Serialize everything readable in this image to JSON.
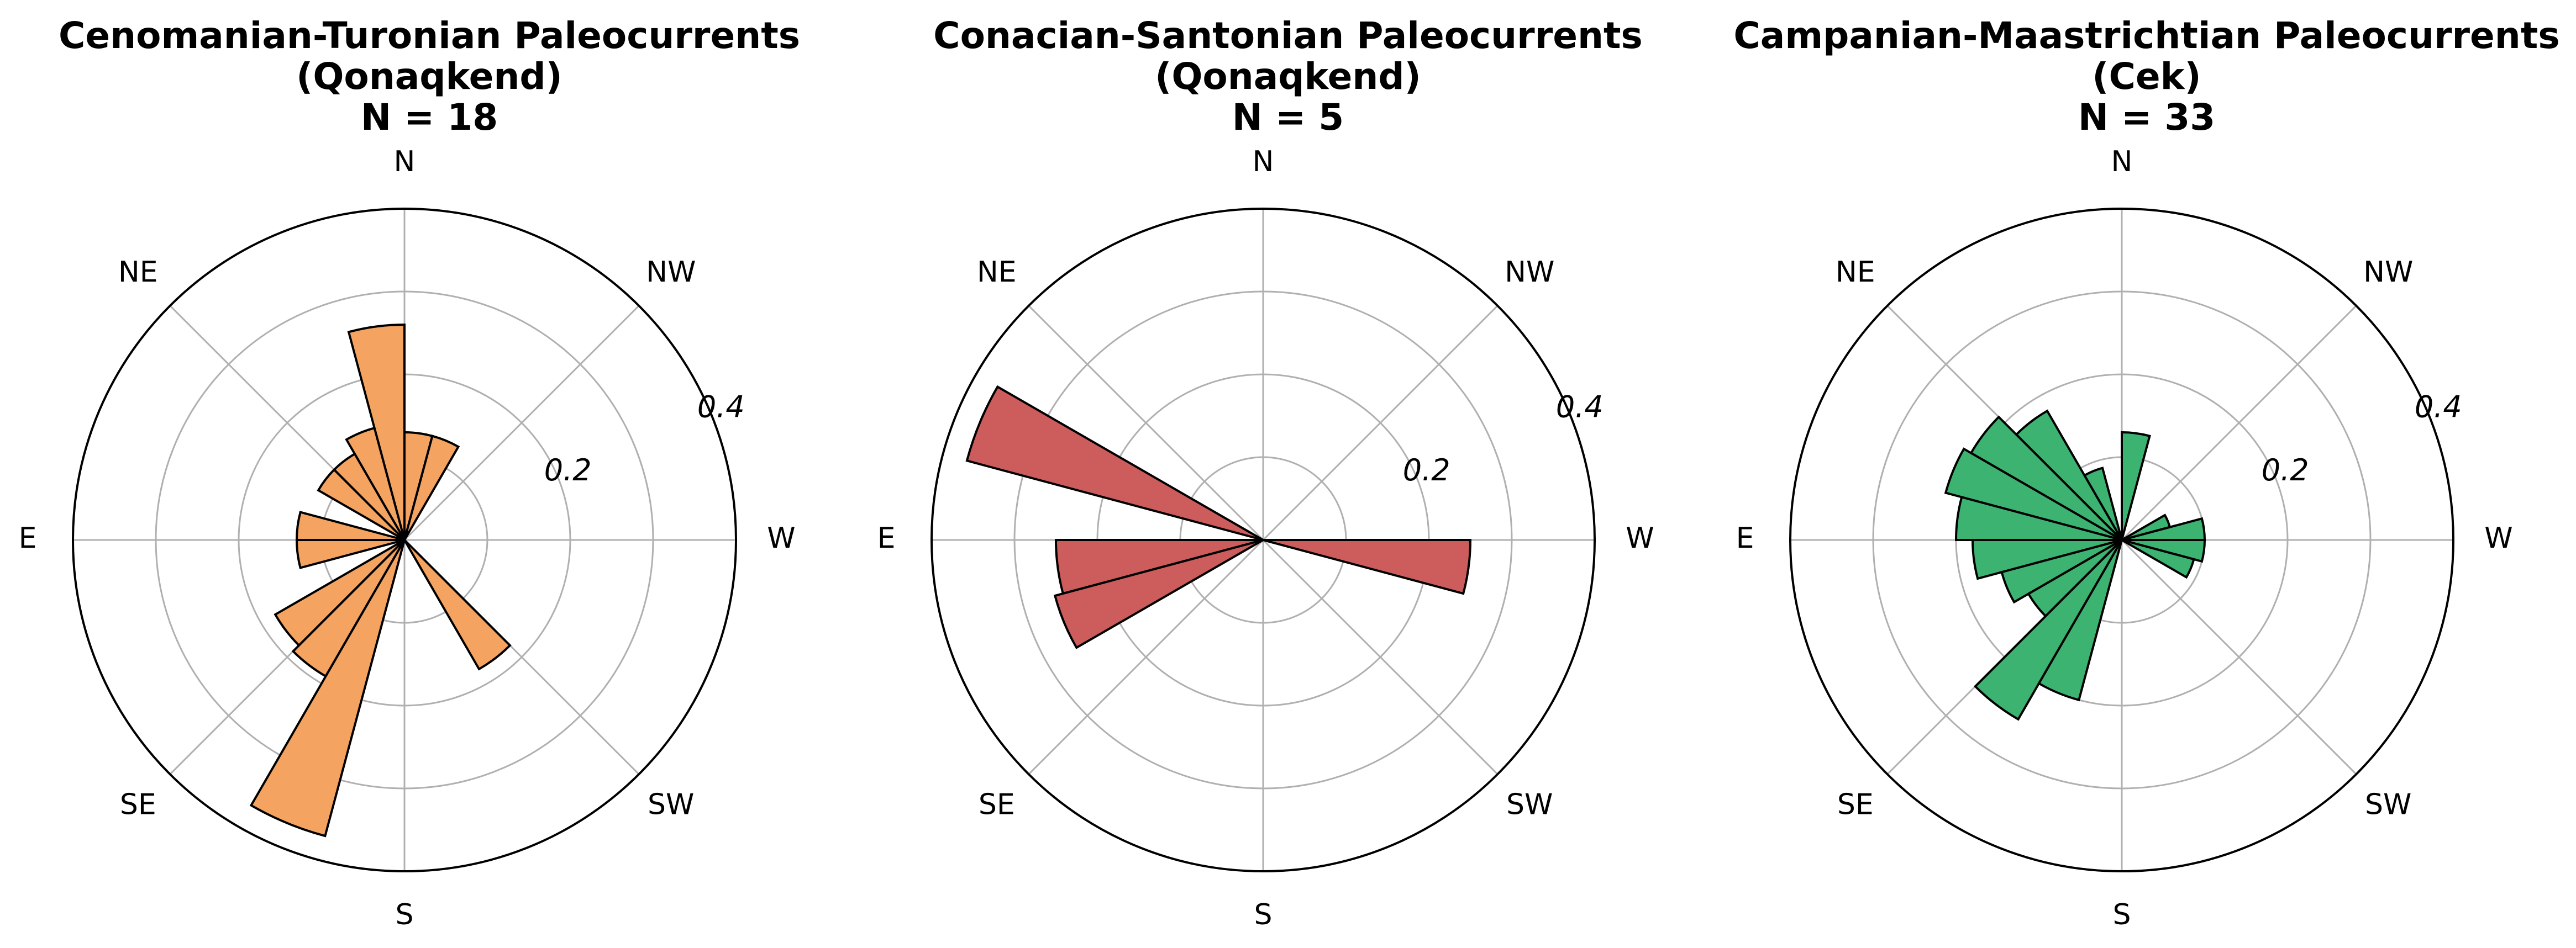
{
  "figure": {
    "panels": [
      {
        "title_line1": "Cenomanian-Turonian Paleocurrents",
        "title_line2": "(Qonaqkend)",
        "title_line3": "N = 18"
      },
      {
        "title_line1": "Conacian-Santonian Paleocurrents",
        "title_line2": "(Qonaqkend)",
        "title_line3": "N = 5"
      },
      {
        "title_line1": "Campanian-Maastrichtian Paleocurrents",
        "title_line2": "(Cek)",
        "title_line3": "N = 33"
      }
    ]
  },
  "chart_data": [
    {
      "type": "bar",
      "subtype": "rose",
      "title": "Cenomanian-Turonian Paleocurrents (Qonaqkend) N = 18",
      "direction_labels": [
        "N",
        "NE",
        "E",
        "SE",
        "S",
        "SW",
        "W",
        "NW"
      ],
      "direction_angles_deg": [
        0,
        315,
        270,
        225,
        180,
        135,
        90,
        45
      ],
      "angular_orientation": "north at top, angle increasing clockwise, W on right",
      "radial_ticks": [
        0.1,
        0.2,
        0.3,
        0.4
      ],
      "radial_tick_labels": [
        "",
        "0.2",
        "",
        "0.4"
      ],
      "rmax": 0.4,
      "bin_width_deg": 15,
      "color": "#F4A460",
      "edge_color": "#000000",
      "bins": [
        {
          "center_deg": 352.5,
          "value": 0.26
        },
        {
          "center_deg": 337.5,
          "value": 0.14
        },
        {
          "center_deg": 322.5,
          "value": 0.12
        },
        {
          "center_deg": 307.5,
          "value": 0.12
        },
        {
          "center_deg": 277.5,
          "value": 0.13
        },
        {
          "center_deg": 262.5,
          "value": 0.13
        },
        {
          "center_deg": 232.5,
          "value": 0.18
        },
        {
          "center_deg": 217.5,
          "value": 0.19
        },
        {
          "center_deg": 202.5,
          "value": 0.37
        },
        {
          "center_deg": 142.5,
          "value": 0.18
        },
        {
          "center_deg": 7.5,
          "value": 0.13
        },
        {
          "center_deg": 22.5,
          "value": 0.13
        }
      ]
    },
    {
      "type": "bar",
      "subtype": "rose",
      "title": "Conacian-Santonian Paleocurrents (Qonaqkend) N = 5",
      "direction_labels": [
        "N",
        "NE",
        "E",
        "SE",
        "S",
        "SW",
        "W",
        "NW"
      ],
      "direction_angles_deg": [
        0,
        315,
        270,
        225,
        180,
        135,
        90,
        45
      ],
      "angular_orientation": "north at top, angle increasing clockwise, W on right",
      "radial_ticks": [
        0.1,
        0.2,
        0.3,
        0.4
      ],
      "radial_tick_labels": [
        "",
        "0.2",
        "",
        "0.4"
      ],
      "rmax": 0.4,
      "bin_width_deg": 15,
      "color": "#CD5C5C",
      "edge_color": "#000000",
      "bins": [
        {
          "center_deg": 292.5,
          "value": 0.37
        },
        {
          "center_deg": 262.5,
          "value": 0.25
        },
        {
          "center_deg": 247.5,
          "value": 0.26
        },
        {
          "center_deg": 97.5,
          "value": 0.25
        }
      ]
    },
    {
      "type": "bar",
      "subtype": "rose",
      "title": "Campanian-Maastrichtian Paleocurrents (Cek) N = 33",
      "direction_labels": [
        "N",
        "NE",
        "E",
        "SE",
        "S",
        "SW",
        "W",
        "NW"
      ],
      "direction_angles_deg": [
        0,
        315,
        270,
        225,
        180,
        135,
        90,
        45
      ],
      "angular_orientation": "north at top, angle increasing clockwise, W on right",
      "radial_ticks": [
        0.1,
        0.2,
        0.3,
        0.4
      ],
      "radial_tick_labels": [
        "",
        "0.2",
        "",
        "0.4"
      ],
      "rmax": 0.4,
      "bin_width_deg": 15,
      "color": "#3CB371",
      "edge_color": "#000000",
      "bins": [
        {
          "center_deg": 337.5,
          "value": 0.09
        },
        {
          "center_deg": 322.5,
          "value": 0.18
        },
        {
          "center_deg": 307.5,
          "value": 0.21
        },
        {
          "center_deg": 292.5,
          "value": 0.22
        },
        {
          "center_deg": 277.5,
          "value": 0.2
        },
        {
          "center_deg": 262.5,
          "value": 0.18
        },
        {
          "center_deg": 247.5,
          "value": 0.15
        },
        {
          "center_deg": 232.5,
          "value": 0.13
        },
        {
          "center_deg": 217.5,
          "value": 0.25
        },
        {
          "center_deg": 202.5,
          "value": 0.2
        },
        {
          "center_deg": 67.5,
          "value": 0.06
        },
        {
          "center_deg": 82.5,
          "value": 0.1
        },
        {
          "center_deg": 97.5,
          "value": 0.1
        },
        {
          "center_deg": 112.5,
          "value": 0.09
        },
        {
          "center_deg": 7.5,
          "value": 0.13
        }
      ]
    }
  ]
}
